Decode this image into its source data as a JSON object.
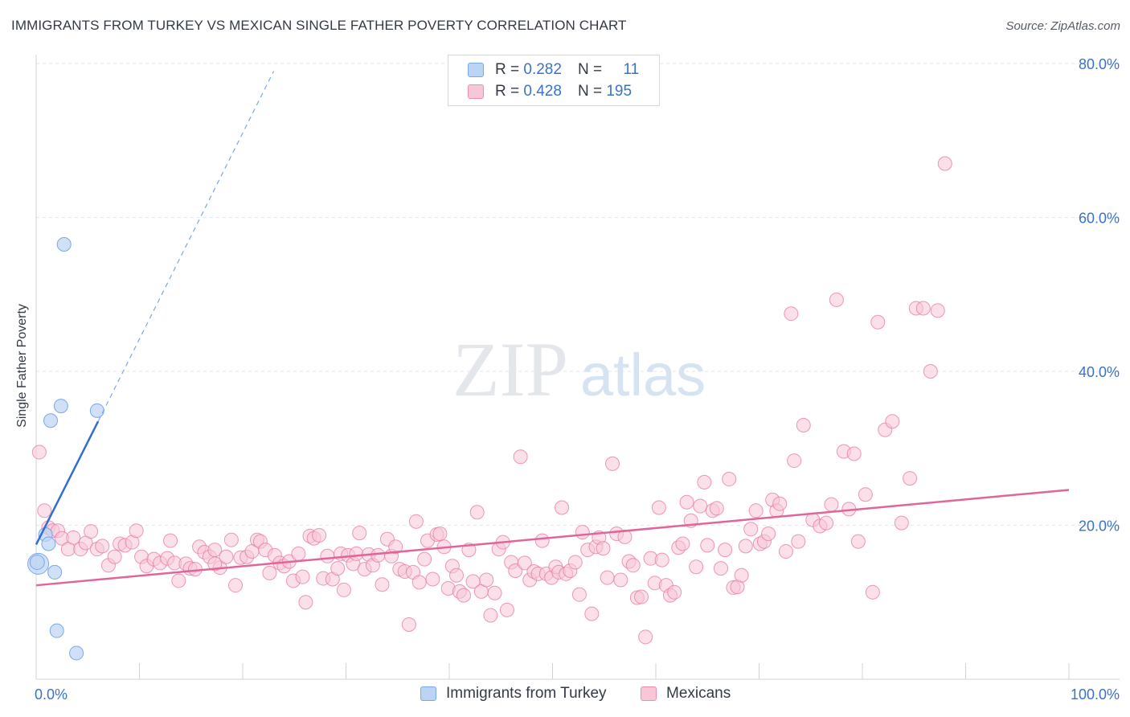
{
  "title": "IMMIGRANTS FROM TURKEY VS MEXICAN SINGLE FATHER POVERTY CORRELATION CHART",
  "source": "Source: ZipAtlas.com",
  "watermark": {
    "zip": "ZIP",
    "atlas": "atlas"
  },
  "legend": {
    "r_label": "R =",
    "n_label": "N =",
    "rows": [
      {
        "r": "0.282",
        "n": "11",
        "color": "#bcd4f4"
      },
      {
        "r": "0.428",
        "n": "195",
        "color": "#f8c7d7"
      }
    ]
  },
  "bottom_legend": [
    "Immigrants from Turkey",
    "Mexicans"
  ],
  "chart_data": {
    "type": "scatter",
    "title": "IMMIGRANTS FROM TURKEY VS MEXICAN SINGLE FATHER POVERTY CORRELATION CHART",
    "ylabel": "Single Father Poverty",
    "xlabel": "",
    "xlim": [
      0,
      100
    ],
    "ylim": [
      0,
      80
    ],
    "x_tick_labels": [
      "0.0%",
      "100.0%"
    ],
    "y_tick_labels": [
      "20.0%",
      "40.0%",
      "60.0%",
      "80.0%"
    ],
    "y_ticks": [
      20,
      40,
      60,
      80
    ],
    "grid": true,
    "legend_position": "top-center",
    "series": [
      {
        "name": "Immigrants from Turkey",
        "color": "#7aa7e8",
        "fill": "#bcd4f4",
        "trend": {
          "x0": 0,
          "y0": 17.5,
          "x1": 6,
          "y1": 33.5,
          "dashed_to": {
            "x": 23,
            "y": 79
          }
        },
        "points": [
          [
            0.2,
            15.0
          ],
          [
            0.9,
            18.8
          ],
          [
            1.2,
            17.6
          ],
          [
            1.4,
            33.6
          ],
          [
            1.8,
            13.9
          ],
          [
            2.0,
            6.3
          ],
          [
            2.4,
            35.5
          ],
          [
            2.7,
            56.5
          ],
          [
            3.9,
            3.4
          ],
          [
            5.9,
            34.9
          ],
          [
            0.1,
            15.2
          ]
        ]
      },
      {
        "name": "Mexicans",
        "color": "#e7779c",
        "fill": "#f8c7d7",
        "trend": {
          "x0": 0,
          "y0": 12.2,
          "x1": 100,
          "y1": 24.6
        },
        "points": [
          [
            0.3,
            29.5
          ],
          [
            0.8,
            21.9
          ],
          [
            1.2,
            19.7
          ],
          [
            1.6,
            19.3
          ],
          [
            2.1,
            19.3
          ],
          [
            2.5,
            18.3
          ],
          [
            3.1,
            16.9
          ],
          [
            3.6,
            18.4
          ],
          [
            4.3,
            16.9
          ],
          [
            4.8,
            17.7
          ],
          [
            5.3,
            19.2
          ],
          [
            5.9,
            16.9
          ],
          [
            6.4,
            17.3
          ],
          [
            7.0,
            14.8
          ],
          [
            7.6,
            15.9
          ],
          [
            8.1,
            17.6
          ],
          [
            8.6,
            17.4
          ],
          [
            9.3,
            17.8
          ],
          [
            9.7,
            19.3
          ],
          [
            10.2,
            15.9
          ],
          [
            10.7,
            14.7
          ],
          [
            11.4,
            15.6
          ],
          [
            12.0,
            15.1
          ],
          [
            12.7,
            15.7
          ],
          [
            13.0,
            18.0
          ],
          [
            13.4,
            15.1
          ],
          [
            13.8,
            12.8
          ],
          [
            14.5,
            15.0
          ],
          [
            14.9,
            14.4
          ],
          [
            15.4,
            14.3
          ],
          [
            15.8,
            17.2
          ],
          [
            16.3,
            16.5
          ],
          [
            16.8,
            15.9
          ],
          [
            17.3,
            16.8
          ],
          [
            17.8,
            14.5
          ],
          [
            18.4,
            15.9
          ],
          [
            18.9,
            18.1
          ],
          [
            19.3,
            12.2
          ],
          [
            19.8,
            15.8
          ],
          [
            20.4,
            15.9
          ],
          [
            20.9,
            16.6
          ],
          [
            21.4,
            18.1
          ],
          [
            21.7,
            17.9
          ],
          [
            22.2,
            16.8
          ],
          [
            22.6,
            13.8
          ],
          [
            23.1,
            16.1
          ],
          [
            23.6,
            15.1
          ],
          [
            24.0,
            14.7
          ],
          [
            24.5,
            15.3
          ],
          [
            24.9,
            12.8
          ],
          [
            25.4,
            16.3
          ],
          [
            25.8,
            13.3
          ],
          [
            26.1,
            10.0
          ],
          [
            26.5,
            18.6
          ],
          [
            26.9,
            18.3
          ],
          [
            27.4,
            18.7
          ],
          [
            27.8,
            13.1
          ],
          [
            28.2,
            16.0
          ],
          [
            28.7,
            13.0
          ],
          [
            29.2,
            14.4
          ],
          [
            29.5,
            16.3
          ],
          [
            29.8,
            11.6
          ],
          [
            30.2,
            16.1
          ],
          [
            30.7,
            15.0
          ],
          [
            31.0,
            16.3
          ],
          [
            31.3,
            19.0
          ],
          [
            31.8,
            14.3
          ],
          [
            32.2,
            16.2
          ],
          [
            32.6,
            14.8
          ],
          [
            33.1,
            16.1
          ],
          [
            33.5,
            12.3
          ],
          [
            34.0,
            18.2
          ],
          [
            34.4,
            16.0
          ],
          [
            34.8,
            17.2
          ],
          [
            35.2,
            14.3
          ],
          [
            35.7,
            14.0
          ],
          [
            36.1,
            7.1
          ],
          [
            36.5,
            13.9
          ],
          [
            36.8,
            20.5
          ],
          [
            37.1,
            12.6
          ],
          [
            37.6,
            15.6
          ],
          [
            37.9,
            18.0
          ],
          [
            38.4,
            13.0
          ],
          [
            38.8,
            18.8
          ],
          [
            39.1,
            18.9
          ],
          [
            39.5,
            17.2
          ],
          [
            39.9,
            11.8
          ],
          [
            40.3,
            14.7
          ],
          [
            40.7,
            13.5
          ],
          [
            41.0,
            11.4
          ],
          [
            41.4,
            10.9
          ],
          [
            41.9,
            16.8
          ],
          [
            42.3,
            12.7
          ],
          [
            42.7,
            21.7
          ],
          [
            43.1,
            11.4
          ],
          [
            43.6,
            12.9
          ],
          [
            44.0,
            8.3
          ],
          [
            44.4,
            11.2
          ],
          [
            44.8,
            16.9
          ],
          [
            45.2,
            17.8
          ],
          [
            45.6,
            9.0
          ],
          [
            46.0,
            15.2
          ],
          [
            46.4,
            14.1
          ],
          [
            46.9,
            28.9
          ],
          [
            47.3,
            15.1
          ],
          [
            47.8,
            12.9
          ],
          [
            48.2,
            14.0
          ],
          [
            48.6,
            13.7
          ],
          [
            49.0,
            18.0
          ],
          [
            49.4,
            13.7
          ],
          [
            49.9,
            13.2
          ],
          [
            50.3,
            14.6
          ],
          [
            50.6,
            13.9
          ],
          [
            50.9,
            22.3
          ],
          [
            51.3,
            13.7
          ],
          [
            51.7,
            14.1
          ],
          [
            52.2,
            15.2
          ],
          [
            52.6,
            11.0
          ],
          [
            52.9,
            19.1
          ],
          [
            53.4,
            16.8
          ],
          [
            53.8,
            8.5
          ],
          [
            54.2,
            17.2
          ],
          [
            54.5,
            18.4
          ],
          [
            54.9,
            17.0
          ],
          [
            55.3,
            13.2
          ],
          [
            55.8,
            28.0
          ],
          [
            56.2,
            18.9
          ],
          [
            56.6,
            12.9
          ],
          [
            57.0,
            18.5
          ],
          [
            57.4,
            15.3
          ],
          [
            57.8,
            14.8
          ],
          [
            58.2,
            10.6
          ],
          [
            58.6,
            10.7
          ],
          [
            59.0,
            5.5
          ],
          [
            59.5,
            15.7
          ],
          [
            59.9,
            12.5
          ],
          [
            60.3,
            22.3
          ],
          [
            60.6,
            15.5
          ],
          [
            61.0,
            12.2
          ],
          [
            61.4,
            10.9
          ],
          [
            61.8,
            11.3
          ],
          [
            62.2,
            17.1
          ],
          [
            62.6,
            17.6
          ],
          [
            63.0,
            23.0
          ],
          [
            63.4,
            20.6
          ],
          [
            63.9,
            14.6
          ],
          [
            64.3,
            22.5
          ],
          [
            64.7,
            25.6
          ],
          [
            65.0,
            17.4
          ],
          [
            65.5,
            21.9
          ],
          [
            65.9,
            22.2
          ],
          [
            66.3,
            14.4
          ],
          [
            66.7,
            16.8
          ],
          [
            67.1,
            26.0
          ],
          [
            67.5,
            11.9
          ],
          [
            67.9,
            12.0
          ],
          [
            68.3,
            13.5
          ],
          [
            68.7,
            17.3
          ],
          [
            69.2,
            19.5
          ],
          [
            69.7,
            21.9
          ],
          [
            70.1,
            17.6
          ],
          [
            70.5,
            17.9
          ],
          [
            70.9,
            18.9
          ],
          [
            71.3,
            23.3
          ],
          [
            71.7,
            21.9
          ],
          [
            72.0,
            22.8
          ],
          [
            72.6,
            16.6
          ],
          [
            73.1,
            47.5
          ],
          [
            73.4,
            28.4
          ],
          [
            73.8,
            17.9
          ],
          [
            74.3,
            33.0
          ],
          [
            75.2,
            20.7
          ],
          [
            75.9,
            19.9
          ],
          [
            76.5,
            20.3
          ],
          [
            77.0,
            22.7
          ],
          [
            77.5,
            49.3
          ],
          [
            78.2,
            29.6
          ],
          [
            78.7,
            22.1
          ],
          [
            79.2,
            29.3
          ],
          [
            79.6,
            17.9
          ],
          [
            80.3,
            24.0
          ],
          [
            81.0,
            11.3
          ],
          [
            81.5,
            46.4
          ],
          [
            82.2,
            32.4
          ],
          [
            82.9,
            33.5
          ],
          [
            83.8,
            20.3
          ],
          [
            84.6,
            26.1
          ],
          [
            85.2,
            48.2
          ],
          [
            85.9,
            48.2
          ],
          [
            86.6,
            40.0
          ],
          [
            87.3,
            47.9
          ],
          [
            88.0,
            67.0
          ],
          [
            17.3,
            15.0
          ]
        ]
      }
    ]
  },
  "colors": {
    "accent_blue": "#3a72c9",
    "blue_line": "#2f6fd1",
    "pink_line": "#e0669a"
  }
}
